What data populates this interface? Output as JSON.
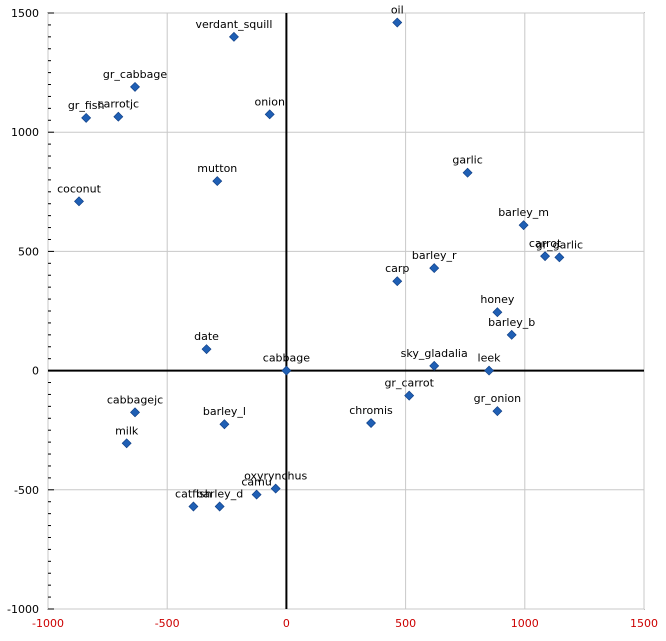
{
  "chart_data": {
    "type": "scatter",
    "title": "",
    "xlabel": "",
    "ylabel": "",
    "xlim": [
      -1000,
      1500
    ],
    "ylim": [
      -1000,
      1500
    ],
    "grid": true,
    "marker_color": "#1f5fb4",
    "axis_color": "#000000",
    "grid_color": "#c8c8c8",
    "x_tick_color": "#cc0000",
    "x_ticks": [
      {
        "value": -1000,
        "label": "-1000"
      },
      {
        "value": -500,
        "label": "-500"
      },
      {
        "value": 0,
        "label": "0"
      },
      {
        "value": 500,
        "label": "500"
      },
      {
        "value": 1000,
        "label": "1000"
      },
      {
        "value": 1500,
        "label": "1500"
      }
    ],
    "y_ticks": [
      {
        "value": 1500,
        "label": "1500"
      },
      {
        "value": 1000,
        "label": "1000"
      },
      {
        "value": 500,
        "label": "500"
      },
      {
        "value": 0,
        "label": "0"
      },
      {
        "value": -500,
        "label": "-500"
      },
      {
        "value": -1000,
        "label": "-1000"
      }
    ],
    "points": [
      {
        "label": "oil",
        "x": 465,
        "y": 1460
      },
      {
        "label": "verdant_squill",
        "x": -220,
        "y": 1400
      },
      {
        "label": "gr_cabbage",
        "x": -635,
        "y": 1190
      },
      {
        "label": "gr_fish",
        "x": -840,
        "y": 1060
      },
      {
        "label": "carrotjc",
        "x": -705,
        "y": 1065
      },
      {
        "label": "onion",
        "x": -70,
        "y": 1075
      },
      {
        "label": "mutton",
        "x": -290,
        "y": 795
      },
      {
        "label": "coconut",
        "x": -870,
        "y": 710
      },
      {
        "label": "garlic",
        "x": 760,
        "y": 830
      },
      {
        "label": "barley_m",
        "x": 995,
        "y": 610
      },
      {
        "label": "carrot",
        "x": 1085,
        "y": 480
      },
      {
        "label": "gr_garlic",
        "x": 1145,
        "y": 475
      },
      {
        "label": "barley_r",
        "x": 620,
        "y": 430
      },
      {
        "label": "carp",
        "x": 465,
        "y": 375
      },
      {
        "label": "honey",
        "x": 885,
        "y": 245
      },
      {
        "label": "barley_b",
        "x": 945,
        "y": 150
      },
      {
        "label": "date",
        "x": -335,
        "y": 90
      },
      {
        "label": "cabbage",
        "x": 0,
        "y": 0
      },
      {
        "label": "sky_gladalia",
        "x": 620,
        "y": 20
      },
      {
        "label": "leek",
        "x": 850,
        "y": 0
      },
      {
        "label": "gr_carrot",
        "x": 515,
        "y": -105
      },
      {
        "label": "gr_onion",
        "x": 885,
        "y": -170
      },
      {
        "label": "cabbagejc",
        "x": -635,
        "y": -175
      },
      {
        "label": "barley_l",
        "x": -260,
        "y": -225
      },
      {
        "label": "chromis",
        "x": 355,
        "y": -220
      },
      {
        "label": "milk",
        "x": -670,
        "y": -305
      },
      {
        "label": "oxyrynchus",
        "x": -45,
        "y": -495
      },
      {
        "label": "camu",
        "x": -125,
        "y": -520
      },
      {
        "label": "catfish",
        "x": -390,
        "y": -570
      },
      {
        "label": "barley_d",
        "x": -280,
        "y": -570
      }
    ]
  }
}
